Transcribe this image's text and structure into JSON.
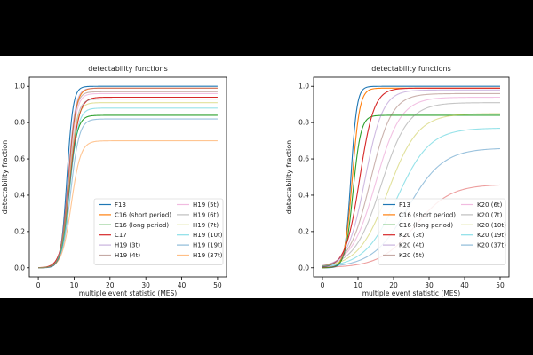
{
  "chart_data": [
    {
      "type": "line",
      "title": "detectability functions",
      "xlabel": "multiple event statistic (MES)",
      "ylabel": "detectability fraction",
      "xlim": [
        -2.5,
        52.5
      ],
      "ylim": [
        -0.05,
        1.05
      ],
      "xticks": [
        "0",
        "10",
        "20",
        "30",
        "40",
        "50"
      ],
      "yticks": [
        "0.0",
        "0.2",
        "0.4",
        "0.6",
        "0.8",
        "1.0"
      ],
      "legend": "lower-right",
      "series": [
        {
          "name": "F13",
          "color": "#1f77b4",
          "params": {
            "max": 1.0,
            "mid": 8.0,
            "w": 0.85
          }
        },
        {
          "name": "C16 (short period)",
          "color": "#ff7f0e",
          "params": {
            "max": 0.99,
            "mid": 8.4,
            "w": 1.05
          }
        },
        {
          "name": "C16 (long period)",
          "color": "#2ca02c",
          "params": {
            "max": 0.84,
            "mid": 8.6,
            "w": 1.1
          }
        },
        {
          "name": "C17",
          "color": "#d62728",
          "params": {
            "max": 0.94,
            "mid": 8.8,
            "w": 1.25
          }
        },
        {
          "name": "H19 (3t)",
          "color": "#9467bd",
          "params": {
            "max": 0.99,
            "mid": 8.3,
            "w": 1.0
          }
        },
        {
          "name": "H19 (4t)",
          "color": "#8c564b",
          "params": {
            "max": 0.97,
            "mid": 8.4,
            "w": 1.0
          }
        },
        {
          "name": "H19 (5t)",
          "color": "#e377c2",
          "params": {
            "max": 0.96,
            "mid": 8.5,
            "w": 1.05
          }
        },
        {
          "name": "H19 (6t)",
          "color": "#7f7f7f",
          "params": {
            "max": 0.93,
            "mid": 8.6,
            "w": 1.1
          }
        },
        {
          "name": "H19 (7t)",
          "color": "#bcbd22",
          "params": {
            "max": 0.91,
            "mid": 8.6,
            "w": 1.1
          }
        },
        {
          "name": "H19 (10t)",
          "color": "#17becf",
          "params": {
            "max": 0.88,
            "mid": 8.8,
            "w": 1.15
          }
        },
        {
          "name": "H19 (19t)",
          "color": "#1f77b4",
          "params": {
            "max": 0.82,
            "mid": 9.0,
            "w": 1.2
          }
        },
        {
          "name": "H19 (37t)",
          "color": "#ff7f0e",
          "params": {
            "max": 0.7,
            "mid": 9.2,
            "w": 1.3
          }
        }
      ]
    },
    {
      "type": "line",
      "title": "detectability functions",
      "xlabel": "multiple event statistic (MES)",
      "ylabel": "detectability fraction",
      "xlim": [
        -2.5,
        52.5
      ],
      "ylim": [
        -0.05,
        1.05
      ],
      "xticks": [
        "0",
        "10",
        "20",
        "30",
        "40",
        "50"
      ],
      "yticks": [
        "0.0",
        "0.2",
        "0.4",
        "0.6",
        "0.8",
        "1.0"
      ],
      "legend": "lower-right",
      "series": [
        {
          "name": "F13",
          "color": "#1f77b4",
          "params": {
            "max": 1.0,
            "mid": 8.0,
            "w": 0.85
          }
        },
        {
          "name": "C16 (short period)",
          "color": "#ff7f0e",
          "params": {
            "max": 0.99,
            "mid": 8.4,
            "w": 1.05
          }
        },
        {
          "name": "C16 (long period)",
          "color": "#2ca02c",
          "params": {
            "max": 0.84,
            "mid": 8.6,
            "w": 1.1
          }
        },
        {
          "name": "K20 (3t)",
          "color": "#d62728",
          "params": {
            "max": 0.99,
            "mid": 10.5,
            "w": 2.0
          }
        },
        {
          "name": "K20 (4t)",
          "color": "#9467bd",
          "params": {
            "max": 0.98,
            "mid": 12.0,
            "w": 2.5
          }
        },
        {
          "name": "K20 (5t)",
          "color": "#8c564b",
          "params": {
            "max": 0.96,
            "mid": 13.5,
            "w": 3.0
          }
        },
        {
          "name": "K20 (6t)",
          "color": "#e377c2",
          "params": {
            "max": 0.94,
            "mid": 15.0,
            "w": 3.5
          }
        },
        {
          "name": "K20 (7t)",
          "color": "#7f7f7f",
          "params": {
            "max": 0.91,
            "mid": 16.5,
            "w": 3.8
          }
        },
        {
          "name": "K20 (10t)",
          "color": "#bcbd22",
          "params": {
            "max": 0.85,
            "mid": 18.5,
            "w": 4.2
          }
        },
        {
          "name": "K20 (19t)",
          "color": "#17becf",
          "params": {
            "max": 0.77,
            "mid": 21.0,
            "w": 4.6
          }
        },
        {
          "name": "K20 (37t)",
          "color": "#1f77b4",
          "params": {
            "max": 0.66,
            "mid": 24.0,
            "w": 5.0
          }
        },
        {
          "name": "",
          "color": "#d62728",
          "params": {
            "max": 0.46,
            "mid": 26.0,
            "w": 5.0
          }
        }
      ]
    }
  ]
}
